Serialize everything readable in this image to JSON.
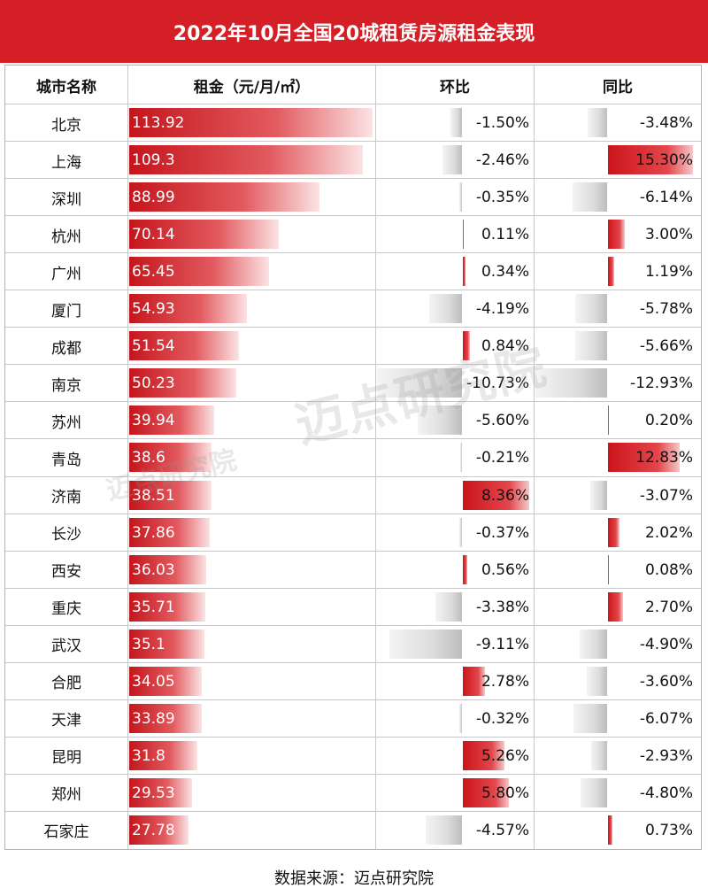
{
  "title": "2022年10月全国20城租赁房源租金表现",
  "headers": {
    "city": "城市名称",
    "rent": "租金（元/月/㎡）",
    "mom": "环比",
    "yoy": "同比"
  },
  "source": "数据来源：迈点研究院",
  "watermark": "迈点研究院",
  "colors": {
    "brand_red": "#d41f26",
    "positive_bar": "#cc141b",
    "negative_bar": "#bdbdbd"
  },
  "chart_data": {
    "type": "table",
    "title": "2022年10月全国20城租赁房源租金表现",
    "columns": [
      "城市名称",
      "租金（元/月/㎡）",
      "环比",
      "同比"
    ],
    "rows": [
      {
        "city": "北京",
        "rent": 113.92,
        "rent_label": "113.92",
        "mom": -1.5,
        "mom_label": "-1.50%",
        "yoy": -3.48,
        "yoy_label": "-3.48%"
      },
      {
        "city": "上海",
        "rent": 109.3,
        "rent_label": "109.3",
        "mom": -2.46,
        "mom_label": "-2.46%",
        "yoy": 15.3,
        "yoy_label": "15.30%"
      },
      {
        "city": "深圳",
        "rent": 88.99,
        "rent_label": "88.99",
        "mom": -0.35,
        "mom_label": "-0.35%",
        "yoy": -6.14,
        "yoy_label": "-6.14%"
      },
      {
        "city": "杭州",
        "rent": 70.14,
        "rent_label": "70.14",
        "mom": 0.11,
        "mom_label": "0.11%",
        "yoy": 3.0,
        "yoy_label": "3.00%"
      },
      {
        "city": "广州",
        "rent": 65.45,
        "rent_label": "65.45",
        "mom": 0.34,
        "mom_label": "0.34%",
        "yoy": 1.19,
        "yoy_label": "1.19%"
      },
      {
        "city": "厦门",
        "rent": 54.93,
        "rent_label": "54.93",
        "mom": -4.19,
        "mom_label": "-4.19%",
        "yoy": -5.78,
        "yoy_label": "-5.78%"
      },
      {
        "city": "成都",
        "rent": 51.54,
        "rent_label": "51.54",
        "mom": 0.84,
        "mom_label": "0.84%",
        "yoy": -5.66,
        "yoy_label": "-5.66%"
      },
      {
        "city": "南京",
        "rent": 50.23,
        "rent_label": "50.23",
        "mom": -10.73,
        "mom_label": "-10.73%",
        "yoy": -12.93,
        "yoy_label": "-12.93%"
      },
      {
        "city": "苏州",
        "rent": 39.94,
        "rent_label": "39.94",
        "mom": -5.6,
        "mom_label": "-5.60%",
        "yoy": 0.2,
        "yoy_label": "0.20%"
      },
      {
        "city": "青岛",
        "rent": 38.6,
        "rent_label": "38.6",
        "mom": -0.21,
        "mom_label": "-0.21%",
        "yoy": 12.83,
        "yoy_label": "12.83%"
      },
      {
        "city": "济南",
        "rent": 38.51,
        "rent_label": "38.51",
        "mom": 8.36,
        "mom_label": "8.36%",
        "yoy": -3.07,
        "yoy_label": "-3.07%"
      },
      {
        "city": "长沙",
        "rent": 37.86,
        "rent_label": "37.86",
        "mom": -0.37,
        "mom_label": "-0.37%",
        "yoy": 2.02,
        "yoy_label": "2.02%"
      },
      {
        "city": "西安",
        "rent": 36.03,
        "rent_label": "36.03",
        "mom": 0.56,
        "mom_label": "0.56%",
        "yoy": 0.08,
        "yoy_label": "0.08%"
      },
      {
        "city": "重庆",
        "rent": 35.71,
        "rent_label": "35.71",
        "mom": -3.38,
        "mom_label": "-3.38%",
        "yoy": 2.7,
        "yoy_label": "2.70%"
      },
      {
        "city": "武汉",
        "rent": 35.1,
        "rent_label": "35.1",
        "mom": -9.11,
        "mom_label": "-9.11%",
        "yoy": -4.9,
        "yoy_label": "-4.90%"
      },
      {
        "city": "合肥",
        "rent": 34.05,
        "rent_label": "34.05",
        "mom": 2.78,
        "mom_label": "2.78%",
        "yoy": -3.6,
        "yoy_label": "-3.60%"
      },
      {
        "city": "天津",
        "rent": 33.89,
        "rent_label": "33.89",
        "mom": -0.32,
        "mom_label": "-0.32%",
        "yoy": -6.07,
        "yoy_label": "-6.07%"
      },
      {
        "city": "昆明",
        "rent": 31.8,
        "rent_label": "31.8",
        "mom": 5.26,
        "mom_label": "5.26%",
        "yoy": -2.93,
        "yoy_label": "-2.93%"
      },
      {
        "city": "郑州",
        "rent": 29.53,
        "rent_label": "29.53",
        "mom": 5.8,
        "mom_label": "5.80%",
        "yoy": -4.8,
        "yoy_label": "-4.80%"
      },
      {
        "city": "石家庄",
        "rent": 27.78,
        "rent_label": "27.78",
        "mom": -4.57,
        "mom_label": "-4.57%",
        "yoy": 0.73,
        "yoy_label": "0.73%"
      }
    ]
  }
}
